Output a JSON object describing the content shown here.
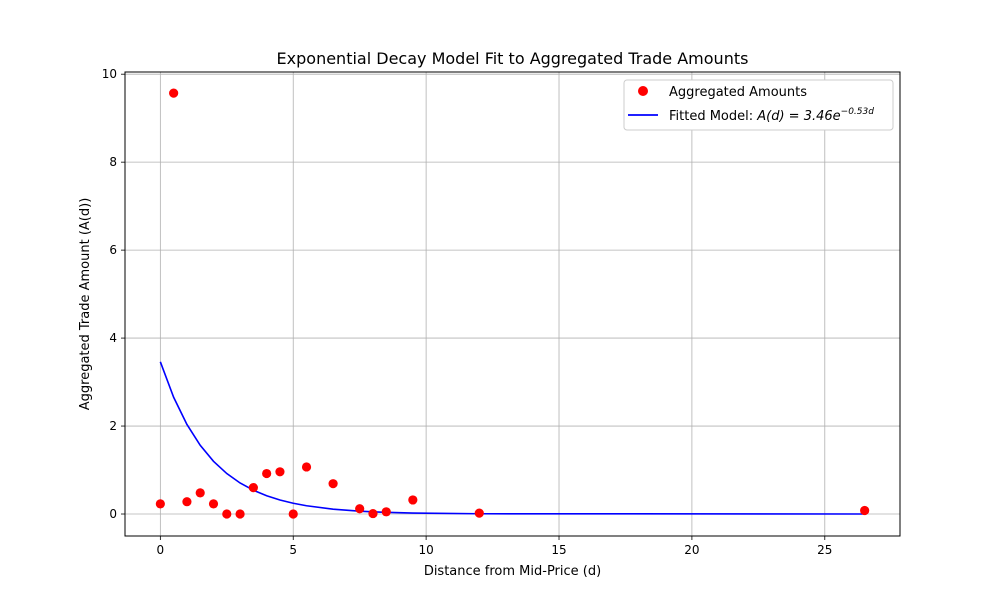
{
  "chart_data": {
    "type": "scatter",
    "title": "Exponential Decay Model Fit to Aggregated Trade Amounts",
    "xlabel": "Distance from Mid-Price (d)",
    "ylabel": "Aggregated Trade Amount (A(d))",
    "xlim": [
      -1.33,
      27.83
    ],
    "ylim": [
      -0.5,
      10.05
    ],
    "xticks": [
      0,
      5,
      10,
      15,
      20,
      25
    ],
    "yticks": [
      0,
      2,
      4,
      6,
      8,
      10
    ],
    "grid": true,
    "legend_position": "top-right",
    "series": [
      {
        "name": "Aggregated Amounts",
        "kind": "points",
        "color": "#ff0000",
        "x": [
          0,
          0.5,
          1,
          1.5,
          2,
          2.5,
          3,
          3.5,
          4,
          4.5,
          5,
          5.5,
          6.5,
          7.5,
          8,
          8.5,
          9.5,
          12,
          26.5
        ],
        "y": [
          0.23,
          9.57,
          0.28,
          0.48,
          0.23,
          0.0,
          0.0,
          0.6,
          0.92,
          0.96,
          0.0,
          1.07,
          0.69,
          0.12,
          0.01,
          0.05,
          0.32,
          0.02,
          0.08
        ]
      },
      {
        "name": "Fitted Model: A(d) = 3.46e^{-0.53d}",
        "kind": "line",
        "color": "#0000ff",
        "model": {
          "a": 3.46,
          "b": 0.53
        },
        "x": [
          0,
          0.5,
          1,
          1.5,
          2,
          2.5,
          3,
          3.5,
          4,
          4.5,
          5,
          5.5,
          6.5,
          7.5,
          8,
          8.5,
          9.5,
          12,
          26.5
        ]
      }
    ],
    "legend": {
      "points_label": "Aggregated Amounts",
      "line_label_prefix": "Fitted Model: ",
      "line_label_math": "A(d) = 3.46e",
      "line_label_exponent": "−0.53d"
    }
  }
}
